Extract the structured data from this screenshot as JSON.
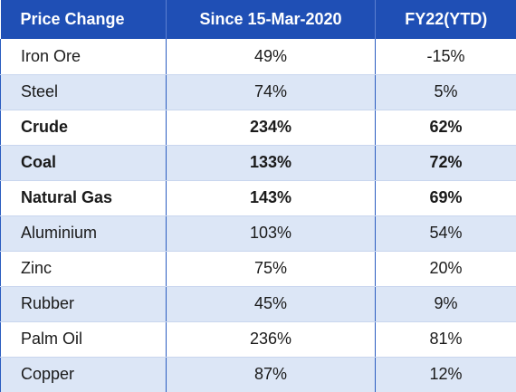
{
  "chart_data": {
    "type": "table",
    "columns": [
      "Price Change",
      "Since 15-Mar-2020",
      "FY22(YTD)"
    ],
    "rows": [
      {
        "name": "Iron Ore",
        "since": "49%",
        "fy22": "-15%",
        "bold": false
      },
      {
        "name": "Steel",
        "since": "74%",
        "fy22": "5%",
        "bold": false
      },
      {
        "name": "Crude",
        "since": "234%",
        "fy22": "62%",
        "bold": true
      },
      {
        "name": "Coal",
        "since": "133%",
        "fy22": "72%",
        "bold": true
      },
      {
        "name": "Natural Gas",
        "since": "143%",
        "fy22": "69%",
        "bold": true
      },
      {
        "name": "Aluminium",
        "since": "103%",
        "fy22": "54%",
        "bold": false
      },
      {
        "name": "Zinc",
        "since": "75%",
        "fy22": "20%",
        "bold": false
      },
      {
        "name": "Rubber",
        "since": "45%",
        "fy22": "9%",
        "bold": false
      },
      {
        "name": "Palm Oil",
        "since": "236%",
        "fy22": "81%",
        "bold": false
      },
      {
        "name": "Copper",
        "since": "87%",
        "fy22": "12%",
        "bold": false
      }
    ],
    "colors": {
      "header_bg": "#1f4fb5",
      "header_text": "#ffffff",
      "row_alt_bg": "#dce6f6"
    }
  }
}
